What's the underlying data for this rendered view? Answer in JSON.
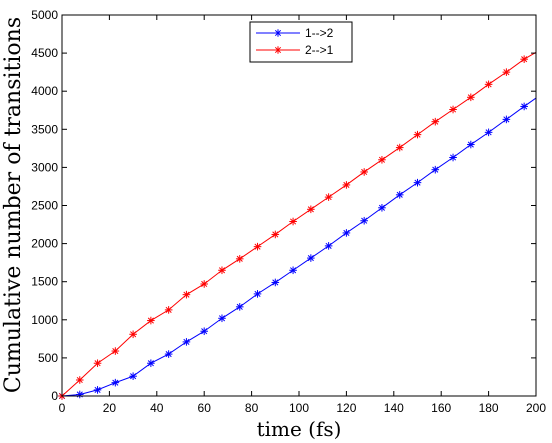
{
  "chart_data": {
    "type": "line",
    "title": "",
    "xlabel": "time (fs)",
    "ylabel": "Cumulative number of transitions",
    "xlim": [
      0,
      200
    ],
    "ylim": [
      0,
      5000
    ],
    "x_ticks": [
      0,
      20,
      40,
      60,
      80,
      100,
      120,
      140,
      160,
      180,
      200
    ],
    "y_ticks": [
      0,
      500,
      1000,
      1500,
      2000,
      2500,
      3000,
      3500,
      4000,
      4500,
      5000
    ],
    "grid": false,
    "legend_position": "top-center",
    "series": [
      {
        "name": "1-->2",
        "color": "#0000ff",
        "marker": "asterisk",
        "x": [
          0,
          7.5,
          15,
          22.5,
          30,
          37.5,
          45,
          52.5,
          60,
          67.5,
          75,
          82.5,
          90,
          97.5,
          105,
          112.5,
          120,
          127.5,
          135,
          142.5,
          150,
          157.5,
          165,
          172.5,
          180,
          187.5,
          195,
          200
        ],
        "y": [
          0,
          20,
          80,
          175,
          260,
          430,
          550,
          710,
          850,
          1020,
          1170,
          1340,
          1490,
          1650,
          1810,
          1970,
          2140,
          2300,
          2470,
          2640,
          2800,
          2970,
          3130,
          3300,
          3460,
          3630,
          3800,
          3910
        ]
      },
      {
        "name": "2-->1",
        "color": "#ff0000",
        "marker": "asterisk",
        "x": [
          0,
          7.5,
          15,
          22.5,
          30,
          37.5,
          45,
          52.5,
          60,
          67.5,
          75,
          82.5,
          90,
          97.5,
          105,
          112.5,
          120,
          127.5,
          135,
          142.5,
          150,
          157.5,
          165,
          172.5,
          180,
          187.5,
          195,
          200
        ],
        "y": [
          0,
          210,
          430,
          590,
          810,
          990,
          1130,
          1330,
          1470,
          1650,
          1800,
          1960,
          2120,
          2290,
          2450,
          2610,
          2770,
          2940,
          3100,
          3260,
          3430,
          3600,
          3760,
          3920,
          4090,
          4250,
          4420,
          4510
        ]
      }
    ]
  }
}
